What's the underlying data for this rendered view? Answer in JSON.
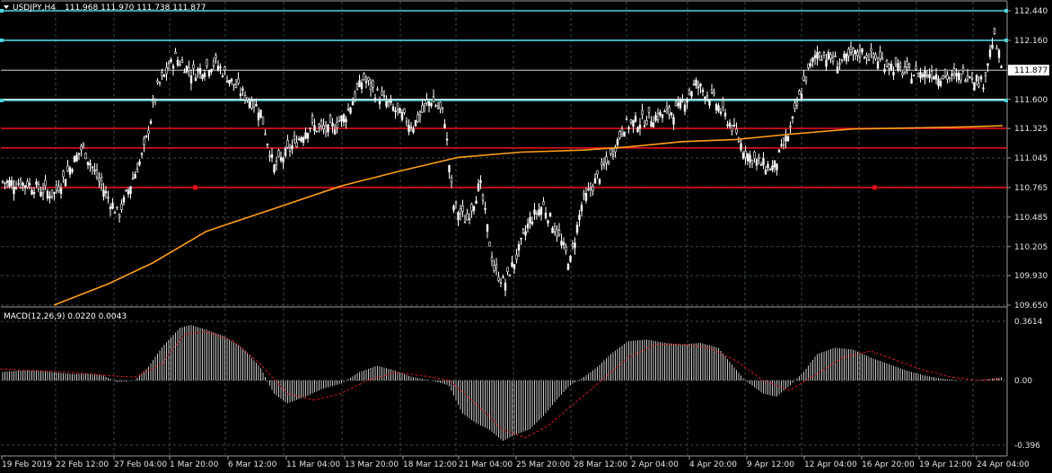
{
  "header": {
    "triangle_icon": "triangle-down-icon",
    "symbol_tf": "USDJPY,H4",
    "ohlc": "111.968 111.970 111.738 111.877"
  },
  "macd_header": "MACD(12,26,9) 0.0220 0.0043",
  "price_axis_labels": [
    "112.440",
    "112.160",
    "111.600",
    "111.325",
    "111.045",
    "110.765",
    "110.485",
    "110.205",
    "109.930",
    "109.650"
  ],
  "current_price_label": "111.877",
  "macd_axis_labels": [
    "0.3614",
    "0.00",
    "-0.396"
  ],
  "time_labels": [
    "19 Feb 2019",
    "22 Feb 12:00",
    "27 Feb 04:00",
    "1 Mar 20:00",
    "6 Mar 12:00",
    "11 Mar 04:00",
    "13 Mar 20:00",
    "18 Mar 12:00",
    "21 Mar 04:00",
    "25 Mar 20:00",
    "28 Mar 12:00",
    "2 Apr 04:00",
    "4 Apr 20:00",
    "9 Apr 12:00",
    "12 Apr 04:00",
    "16 Apr 20:00",
    "19 Apr 12:00",
    "24 Apr 04:00"
  ],
  "colors": {
    "background": "#000000",
    "grid": "#3c4a4a",
    "candle": "#ffffff",
    "axis_text": "#e6e6e6",
    "cyan_line": "#4fd6df",
    "red_line": "#e0101a",
    "ma_line": "#ff9e1a",
    "macd_hist": "#c8c8c8",
    "macd_signal": "#d01820",
    "white_line": "#f0f0f0"
  },
  "chart_data": [
    {
      "type": "candlestick",
      "symbol": "USDJPY",
      "timeframe": "H4",
      "ylim": [
        109.65,
        112.44
      ],
      "horizontal_levels": [
        {
          "color": "cyan",
          "value": 112.44
        },
        {
          "color": "cyan",
          "value": 112.16
        },
        {
          "color": "white",
          "value": 111.877
        },
        {
          "color": "white",
          "value": 111.6
        },
        {
          "color": "cyan",
          "value": 111.59
        },
        {
          "color": "red",
          "value": 111.325
        },
        {
          "color": "red",
          "value": 111.14
        },
        {
          "color": "red",
          "value": 110.765
        }
      ],
      "close_path": [
        [
          0,
          110.82
        ],
        [
          30,
          110.8
        ],
        [
          60,
          110.7
        ],
        [
          92,
          111.15
        ],
        [
          112,
          110.8
        ],
        [
          132,
          110.5
        ],
        [
          148,
          110.85
        ],
        [
          160,
          111.1
        ],
        [
          175,
          111.7
        ],
        [
          195,
          112.0
        ],
        [
          215,
          111.85
        ],
        [
          240,
          111.95
        ],
        [
          265,
          111.7
        ],
        [
          290,
          111.5
        ],
        [
          305,
          110.95
        ],
        [
          325,
          111.15
        ],
        [
          345,
          111.35
        ],
        [
          365,
          111.3
        ],
        [
          385,
          111.45
        ],
        [
          405,
          111.8
        ],
        [
          420,
          111.65
        ],
        [
          440,
          111.5
        ],
        [
          460,
          111.35
        ],
        [
          480,
          111.6
        ],
        [
          495,
          111.45
        ],
        [
          505,
          110.6
        ],
        [
          520,
          110.45
        ],
        [
          535,
          110.8
        ],
        [
          550,
          110.0
        ],
        [
          562,
          109.85
        ],
        [
          575,
          110.1
        ],
        [
          590,
          110.45
        ],
        [
          605,
          110.6
        ],
        [
          620,
          110.35
        ],
        [
          635,
          110.05
        ],
        [
          648,
          110.6
        ],
        [
          665,
          110.85
        ],
        [
          680,
          111.05
        ],
        [
          695,
          111.35
        ],
        [
          715,
          111.4
        ],
        [
          735,
          111.45
        ],
        [
          755,
          111.5
        ],
        [
          775,
          111.75
        ],
        [
          795,
          111.6
        ],
        [
          815,
          111.35
        ],
        [
          830,
          111.1
        ],
        [
          845,
          111.0
        ],
        [
          862,
          110.95
        ],
        [
          880,
          111.3
        ],
        [
          895,
          111.75
        ],
        [
          910,
          112.05
        ],
        [
          935,
          111.95
        ],
        [
          960,
          112.05
        ],
        [
          985,
          111.95
        ],
        [
          1010,
          111.85
        ],
        [
          1040,
          111.85
        ],
        [
          1060,
          111.8
        ],
        [
          1080,
          111.85
        ],
        [
          1095,
          111.75
        ],
        [
          1107,
          112.2
        ],
        [
          1117,
          111.877
        ]
      ],
      "moving_average": [
        [
          60,
          109.65
        ],
        [
          120,
          109.85
        ],
        [
          170,
          110.05
        ],
        [
          230,
          110.35
        ],
        [
          300,
          110.55
        ],
        [
          380,
          110.78
        ],
        [
          450,
          110.93
        ],
        [
          510,
          111.05
        ],
        [
          580,
          111.1
        ],
        [
          650,
          111.12
        ],
        [
          700,
          111.15
        ],
        [
          760,
          111.2
        ],
        [
          820,
          111.22
        ],
        [
          880,
          111.27
        ],
        [
          950,
          111.32
        ],
        [
          1020,
          111.33
        ],
        [
          1080,
          111.34
        ],
        [
          1117,
          111.35
        ]
      ]
    },
    {
      "type": "histogram",
      "name": "MACD(12,26,9)",
      "ylim": [
        -0.396,
        0.3614
      ],
      "macd_path": [
        [
          0,
          0.05
        ],
        [
          20,
          0.06
        ],
        [
          40,
          0.06
        ],
        [
          60,
          0.05
        ],
        [
          80,
          0.04
        ],
        [
          100,
          0.04
        ],
        [
          115,
          0.03
        ],
        [
          130,
          -0.01
        ],
        [
          150,
          0.0
        ],
        [
          165,
          0.08
        ],
        [
          180,
          0.2
        ],
        [
          200,
          0.32
        ],
        [
          212,
          0.34
        ],
        [
          230,
          0.31
        ],
        [
          250,
          0.27
        ],
        [
          270,
          0.2
        ],
        [
          290,
          0.08
        ],
        [
          305,
          -0.08
        ],
        [
          320,
          -0.14
        ],
        [
          340,
          -0.1
        ],
        [
          360,
          -0.05
        ],
        [
          380,
          -0.02
        ],
        [
          400,
          0.05
        ],
        [
          420,
          0.09
        ],
        [
          440,
          0.06
        ],
        [
          460,
          0.02
        ],
        [
          480,
          0.0
        ],
        [
          500,
          -0.03
        ],
        [
          515,
          -0.2
        ],
        [
          530,
          -0.26
        ],
        [
          545,
          -0.3
        ],
        [
          560,
          -0.37
        ],
        [
          575,
          -0.33
        ],
        [
          590,
          -0.3
        ],
        [
          605,
          -0.22
        ],
        [
          620,
          -0.12
        ],
        [
          635,
          -0.03
        ],
        [
          650,
          0.02
        ],
        [
          665,
          0.08
        ],
        [
          680,
          0.16
        ],
        [
          700,
          0.24
        ],
        [
          720,
          0.25
        ],
        [
          740,
          0.23
        ],
        [
          760,
          0.22
        ],
        [
          780,
          0.23
        ],
        [
          800,
          0.2
        ],
        [
          815,
          0.1
        ],
        [
          830,
          0.0
        ],
        [
          850,
          -0.08
        ],
        [
          865,
          -0.1
        ],
        [
          880,
          -0.03
        ],
        [
          895,
          0.05
        ],
        [
          910,
          0.16
        ],
        [
          930,
          0.2
        ],
        [
          950,
          0.19
        ],
        [
          970,
          0.14
        ],
        [
          990,
          0.1
        ],
        [
          1010,
          0.06
        ],
        [
          1030,
          0.03
        ],
        [
          1050,
          0.01
        ],
        [
          1070,
          0.0
        ],
        [
          1090,
          0.0
        ],
        [
          1117,
          0.02
        ]
      ],
      "signal_path": [
        [
          0,
          0.07
        ],
        [
          40,
          0.06
        ],
        [
          80,
          0.05
        ],
        [
          120,
          0.03
        ],
        [
          150,
          0.02
        ],
        [
          180,
          0.1
        ],
        [
          205,
          0.28
        ],
        [
          230,
          0.3
        ],
        [
          260,
          0.24
        ],
        [
          290,
          0.1
        ],
        [
          320,
          -0.08
        ],
        [
          350,
          -0.12
        ],
        [
          380,
          -0.08
        ],
        [
          410,
          0.0
        ],
        [
          440,
          0.05
        ],
        [
          470,
          0.03
        ],
        [
          500,
          0.0
        ],
        [
          530,
          -0.14
        ],
        [
          560,
          -0.3
        ],
        [
          585,
          -0.35
        ],
        [
          610,
          -0.28
        ],
        [
          640,
          -0.14
        ],
        [
          670,
          0.0
        ],
        [
          700,
          0.14
        ],
        [
          730,
          0.22
        ],
        [
          760,
          0.22
        ],
        [
          790,
          0.2
        ],
        [
          820,
          0.12
        ],
        [
          850,
          0.0
        ],
        [
          880,
          -0.06
        ],
        [
          910,
          0.04
        ],
        [
          940,
          0.14
        ],
        [
          970,
          0.18
        ],
        [
          1000,
          0.12
        ],
        [
          1030,
          0.06
        ],
        [
          1060,
          0.02
        ],
        [
          1090,
          0.0
        ],
        [
          1117,
          0.01
        ]
      ]
    }
  ]
}
